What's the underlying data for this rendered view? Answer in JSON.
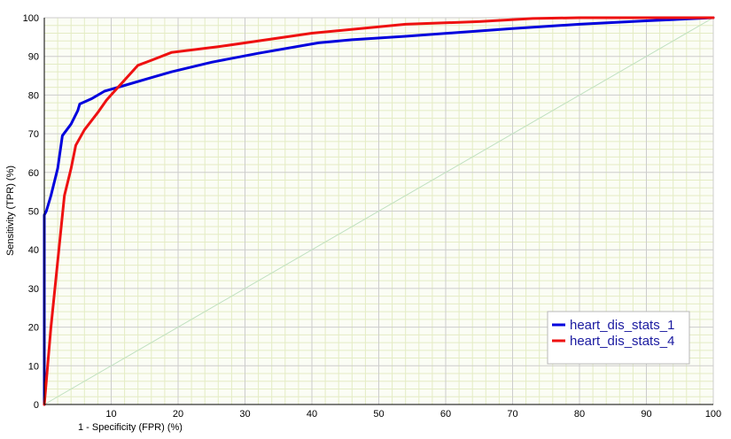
{
  "chart_data": {
    "type": "line",
    "xlabel": "1 - Specificity (FPR) (%)",
    "ylabel": "Sensitivity (TPR) (%)",
    "xlim": [
      0,
      100
    ],
    "ylim": [
      0,
      100
    ],
    "x_ticks": [
      10,
      20,
      30,
      40,
      50,
      60,
      70,
      80,
      90,
      100
    ],
    "y_ticks": [
      0,
      10,
      20,
      30,
      40,
      50,
      60,
      70,
      80,
      90,
      100
    ],
    "grid": true,
    "legend_position": "bottom-right",
    "reference_line": [
      [
        0,
        0
      ],
      [
        100,
        100
      ]
    ],
    "series": [
      {
        "name": "heart_dis_stats_1",
        "color": "#0000dd",
        "points": [
          [
            0,
            0
          ],
          [
            0,
            49
          ],
          [
            0.3,
            50
          ],
          [
            1,
            54
          ],
          [
            2,
            61
          ],
          [
            2.7,
            69.5
          ],
          [
            4,
            72.5
          ],
          [
            5,
            76
          ],
          [
            5.3,
            77.7
          ],
          [
            7,
            79
          ],
          [
            9,
            81
          ],
          [
            12,
            82.5
          ],
          [
            16,
            84.5
          ],
          [
            19,
            86
          ],
          [
            25,
            88.5
          ],
          [
            32,
            90.8
          ],
          [
            41,
            93.5
          ],
          [
            46,
            94.3
          ],
          [
            54,
            95.2
          ],
          [
            62,
            96.2
          ],
          [
            70,
            97.2
          ],
          [
            80,
            98.3
          ],
          [
            90,
            99.2
          ],
          [
            100,
            100
          ]
        ]
      },
      {
        "name": "heart_dis_stats_4",
        "color": "#ee1111",
        "points": [
          [
            0,
            0
          ],
          [
            1,
            20
          ],
          [
            2,
            37
          ],
          [
            3,
            54
          ],
          [
            4,
            61
          ],
          [
            4.7,
            67
          ],
          [
            6,
            71
          ],
          [
            8,
            75.5
          ],
          [
            9.3,
            78.7
          ],
          [
            11,
            82
          ],
          [
            14,
            87.7
          ],
          [
            16,
            89
          ],
          [
            19,
            91
          ],
          [
            26,
            92.5
          ],
          [
            40,
            96
          ],
          [
            54,
            98.3
          ],
          [
            65,
            99
          ],
          [
            73,
            99.8
          ],
          [
            80,
            100
          ],
          [
            100,
            100
          ]
        ]
      }
    ],
    "colors": {
      "grid_major": "#cccccc",
      "grid_minor": "#e4ecc4",
      "reference": "#bfe0bf",
      "legend_border": "#b8b8b8"
    }
  }
}
